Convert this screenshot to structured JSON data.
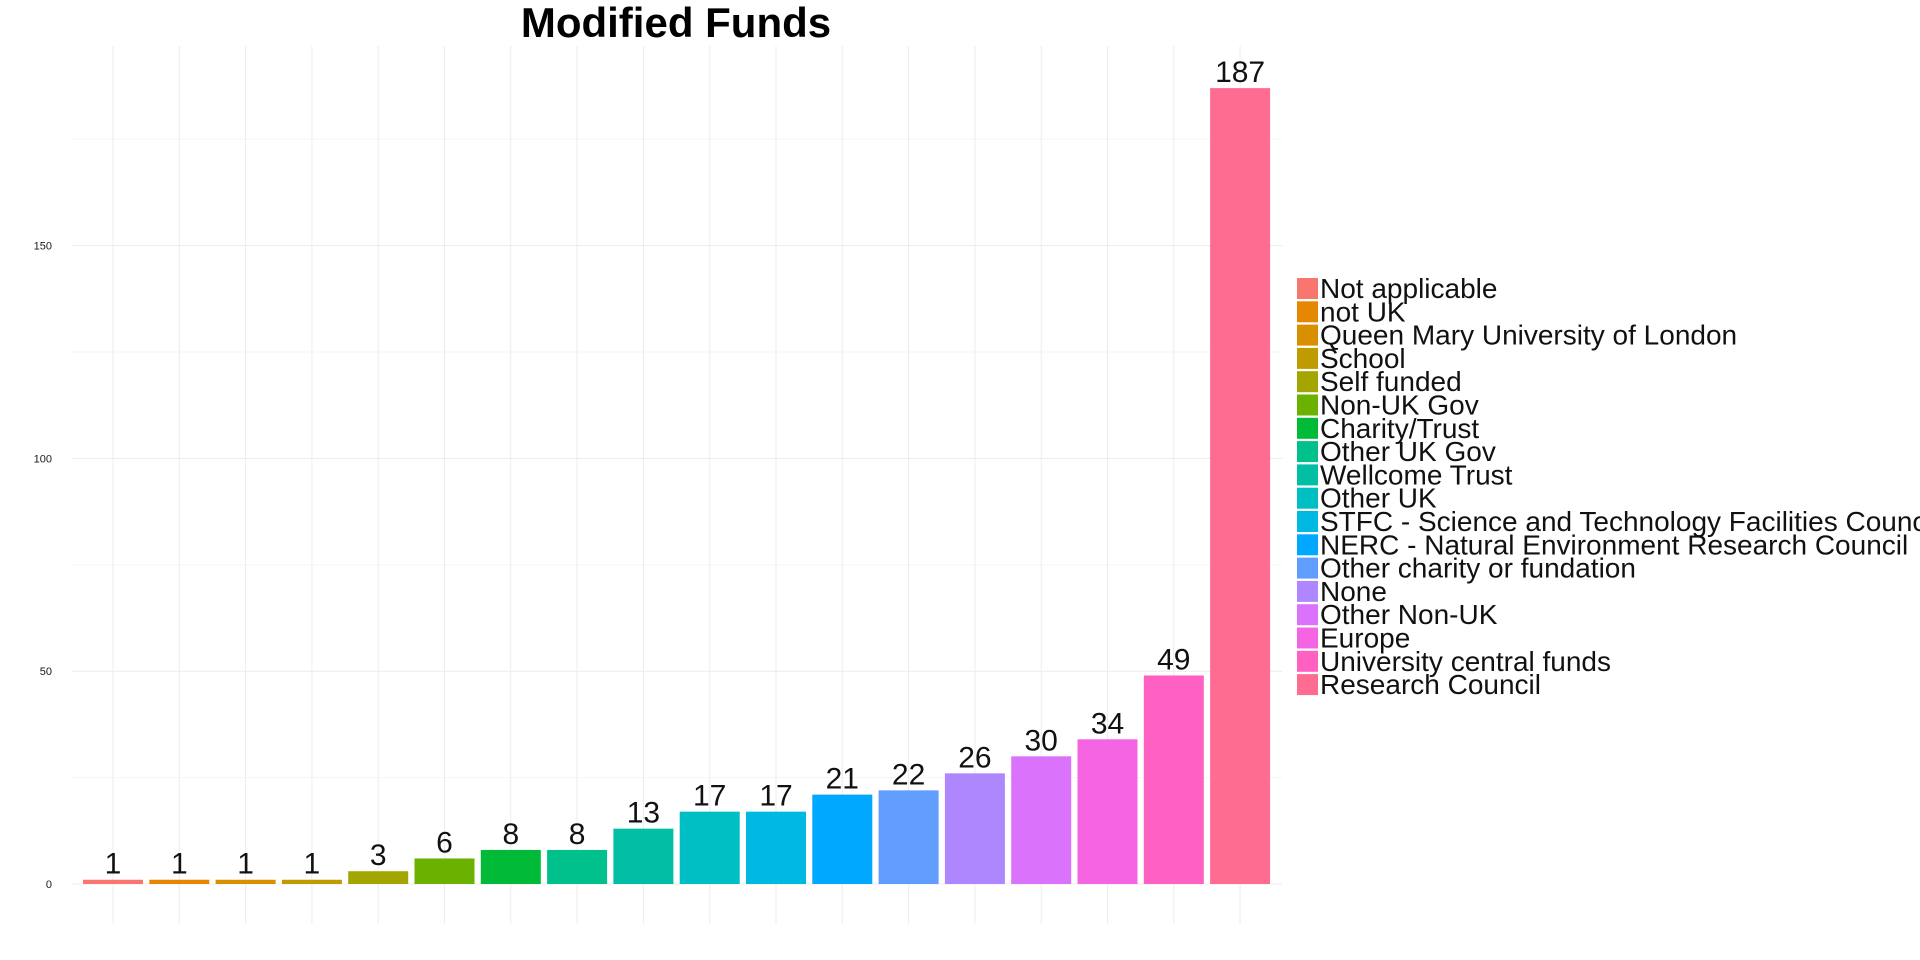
{
  "chart_data": {
    "type": "bar",
    "title": "Modified Funds",
    "xlabel": "",
    "ylabel": "",
    "ylim": [
      0,
      196
    ],
    "y_ticks": [
      0,
      50,
      100,
      150
    ],
    "grid": true,
    "legend_position": "right",
    "categories": [
      "Not applicable",
      "not UK",
      "Queen Mary University of London",
      "School",
      "Self funded",
      "Non-UK Gov",
      "Charity/Trust",
      "Other UK Gov",
      "Wellcome Trust",
      "Other UK",
      "STFC - Science and Technology Facilities Council",
      "NERC - Natural Environment Research Council",
      "Other charity or fundation",
      "None",
      "Other Non-UK",
      "Europe",
      "University central funds",
      "Research Council"
    ],
    "values": [
      1,
      1,
      1,
      1,
      3,
      6,
      8,
      8,
      13,
      17,
      17,
      21,
      22,
      26,
      30,
      34,
      49,
      187
    ],
    "colors": [
      "#F8766D",
      "#E58700",
      "#D89000",
      "#C09B00",
      "#A3A500",
      "#6BB100",
      "#00BA38",
      "#00C08B",
      "#00BFA5",
      "#00BFC4",
      "#00B9E3",
      "#00A9FF",
      "#619CFF",
      "#AE87FF",
      "#DB72FB",
      "#F564E3",
      "#FF61C3",
      "#FF6C91"
    ]
  }
}
